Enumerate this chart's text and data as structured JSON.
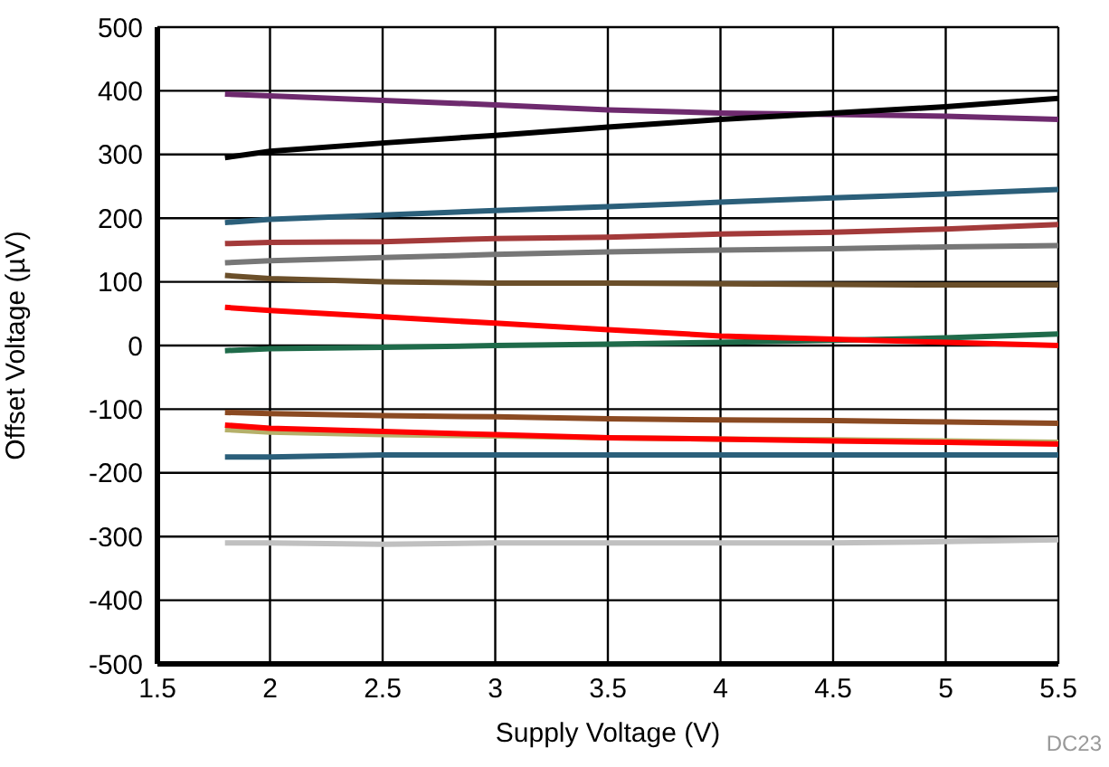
{
  "chart_data": {
    "type": "line",
    "xlabel": "Supply Voltage (V)",
    "ylabel": "Offset Voltage (µV)",
    "annotations": [
      "DC23"
    ],
    "x": [
      1.8,
      2,
      2.5,
      3,
      3.5,
      4,
      4.5,
      5,
      5.5
    ],
    "xlim": [
      1.5,
      5.5
    ],
    "xticks": [
      1.5,
      2,
      2.5,
      3,
      3.5,
      4,
      4.5,
      5,
      5.5
    ],
    "ylim": [
      -500,
      500
    ],
    "yticks": [
      -500,
      -400,
      -300,
      -200,
      -100,
      0,
      100,
      200,
      300,
      400,
      500
    ],
    "grid": true,
    "marker": "none",
    "line_style": "solid",
    "series": [
      {
        "color": "#6e2a6e",
        "values": [
          395,
          392,
          385,
          378,
          370,
          365,
          363,
          360,
          355
        ]
      },
      {
        "color": "#000000",
        "values": [
          295,
          305,
          318,
          330,
          343,
          355,
          365,
          375,
          388
        ]
      },
      {
        "color": "#2b5f7a",
        "values": [
          193,
          198,
          205,
          212,
          218,
          225,
          232,
          238,
          245
        ]
      },
      {
        "color": "#a33a3a",
        "values": [
          160,
          162,
          163,
          168,
          170,
          175,
          178,
          183,
          190
        ]
      },
      {
        "color": "#777777",
        "values": [
          130,
          133,
          138,
          143,
          147,
          150,
          152,
          155,
          157
        ]
      },
      {
        "color": "#6b4f2a",
        "values": [
          110,
          105,
          100,
          98,
          98,
          97,
          96,
          95,
          95
        ]
      },
      {
        "color": "#1f6b4a",
        "values": [
          -8,
          -5,
          -3,
          0,
          2,
          5,
          8,
          12,
          18
        ]
      },
      {
        "color": "#ff0000",
        "values": [
          60,
          55,
          45,
          35,
          25,
          15,
          10,
          5,
          0
        ]
      },
      {
        "color": "#8b4a22",
        "values": [
          -105,
          -107,
          -110,
          -112,
          -115,
          -117,
          -118,
          -120,
          -122
        ]
      },
      {
        "color": "#b5b06a",
        "values": [
          -132,
          -136,
          -140,
          -142,
          -145,
          -147,
          -148,
          -150,
          -152
        ]
      },
      {
        "color": "#ff0000",
        "values": [
          -125,
          -130,
          -135,
          -140,
          -145,
          -147,
          -150,
          -152,
          -155
        ]
      },
      {
        "color": "#2b5f7a",
        "values": [
          -175,
          -175,
          -172,
          -172,
          -172,
          -172,
          -172,
          -172,
          -172
        ]
      },
      {
        "color": "#c0c0c0",
        "values": [
          -310,
          -310,
          -312,
          -310,
          -310,
          -310,
          -310,
          -308,
          -305
        ]
      }
    ]
  }
}
